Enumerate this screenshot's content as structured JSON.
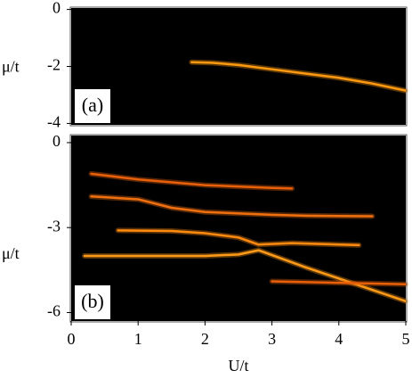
{
  "chart_data": [
    {
      "type": "line",
      "panel_label": "(a)",
      "ylabel": "μ/t",
      "xlim": [
        0,
        5
      ],
      "ylim": [
        -4.05,
        0.05
      ],
      "yticks": [
        0,
        -2,
        -4
      ],
      "series": [
        {
          "color": "#ff9a10",
          "x": [
            1.8,
            2.1,
            2.5,
            3,
            3.5,
            4,
            4.5,
            5
          ],
          "values": [
            -1.85,
            -1.87,
            -1.95,
            -2.1,
            -2.25,
            -2.4,
            -2.6,
            -2.85
          ]
        }
      ]
    },
    {
      "type": "line",
      "panel_label": "(b)",
      "ylabel": "μ/t",
      "xlabel": "U/t",
      "xlim": [
        0,
        5
      ],
      "ylim": [
        -6.3,
        0.25
      ],
      "xticks": [
        0,
        1,
        2,
        3,
        4,
        5
      ],
      "yticks": [
        0,
        -3,
        -6
      ],
      "series": [
        {
          "color": "#e8600a",
          "x": [
            0.3,
            1,
            2,
            3,
            3.3
          ],
          "values": [
            -1.1,
            -1.3,
            -1.5,
            -1.6,
            -1.62
          ]
        },
        {
          "color": "#f07010",
          "x": [
            0.3,
            1,
            1.5,
            2,
            3,
            3.5,
            4.5
          ],
          "values": [
            -1.9,
            -2.0,
            -2.3,
            -2.45,
            -2.55,
            -2.58,
            -2.6
          ]
        },
        {
          "color": "#ff8a10",
          "x": [
            0.7,
            1.5,
            2,
            2.5,
            2.8,
            3.3,
            4,
            4.3
          ],
          "values": [
            -3.1,
            -3.12,
            -3.2,
            -3.35,
            -3.6,
            -3.55,
            -3.6,
            -3.62
          ]
        },
        {
          "color": "#ff9a18",
          "x": [
            0.2,
            1,
            2,
            2.5,
            2.8,
            3.5,
            4,
            4.5,
            5
          ],
          "values": [
            -4.0,
            -4.0,
            -4.0,
            -3.95,
            -3.8,
            -4.4,
            -4.8,
            -5.2,
            -5.6
          ]
        },
        {
          "color": "#e8600a",
          "x": [
            3,
            4,
            5
          ],
          "values": [
            -4.9,
            -4.95,
            -5.0
          ]
        }
      ]
    }
  ]
}
